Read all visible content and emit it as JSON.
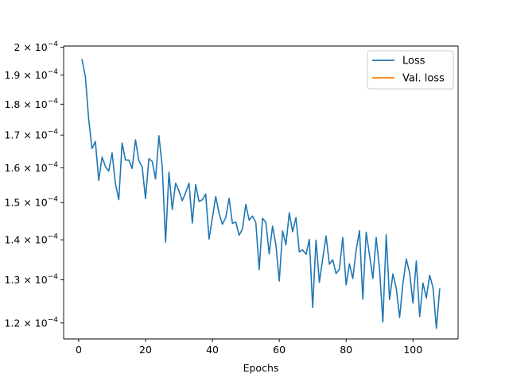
{
  "chart_data": {
    "type": "line",
    "title": "",
    "xlabel": "Epochs",
    "ylabel": "",
    "yscale": "log",
    "xlim": [
      -4.5,
      113.5
    ],
    "ylim": [
      0.0001165,
      0.0002005
    ],
    "grid": false,
    "legend_position": "top-right",
    "x_ticks": [
      0,
      20,
      40,
      60,
      80,
      100
    ],
    "x_tick_labels": [
      "0",
      "20",
      "40",
      "60",
      "80",
      "100"
    ],
    "y_ticks": [
      0.00012,
      0.00013,
      0.00014,
      0.00015,
      0.00016,
      0.00017,
      0.00018,
      0.00019,
      0.0002
    ],
    "y_tick_labels": [
      {
        "mantissa": "1.2",
        "base": "10",
        "exp": "−4"
      },
      {
        "mantissa": "1.3",
        "base": "10",
        "exp": "−4"
      },
      {
        "mantissa": "1.4",
        "base": "10",
        "exp": "−4"
      },
      {
        "mantissa": "1.5",
        "base": "10",
        "exp": "−4"
      },
      {
        "mantissa": "1.6",
        "base": "10",
        "exp": "−4"
      },
      {
        "mantissa": "1.7",
        "base": "10",
        "exp": "−4"
      },
      {
        "mantissa": "1.8",
        "base": "10",
        "exp": "−4"
      },
      {
        "mantissa": "1.9",
        "base": "10",
        "exp": "−4"
      },
      {
        "mantissa": "2",
        "base": "10",
        "exp": "−4"
      }
    ],
    "series": [
      {
        "name": "Loss",
        "color": "#1f77b4",
        "x": [
          1,
          2,
          3,
          4,
          5,
          6,
          7,
          8,
          9,
          10,
          11,
          12,
          13,
          14,
          15,
          16,
          17,
          18,
          19,
          20,
          21,
          22,
          23,
          24,
          25,
          26,
          27,
          28,
          29,
          30,
          31,
          32,
          33,
          34,
          35,
          36,
          37,
          38,
          39,
          40,
          41,
          42,
          43,
          44,
          45,
          46,
          47,
          48,
          49,
          50,
          51,
          52,
          53,
          54,
          55,
          56,
          57,
          58,
          59,
          60,
          61,
          62,
          63,
          64,
          65,
          66,
          67,
          68,
          69,
          70,
          71,
          72,
          73,
          74,
          75,
          76,
          77,
          78,
          79,
          80,
          81,
          82,
          83,
          84,
          85,
          86,
          87,
          88,
          89,
          90,
          91,
          92,
          93,
          94,
          95,
          96,
          97,
          98,
          99,
          100,
          101,
          102,
          103,
          104,
          105,
          106,
          107,
          108
        ],
        "y": [
          0.0001955,
          0.0001895,
          0.000175,
          0.0001658,
          0.000168,
          0.0001563,
          0.0001632,
          0.0001604,
          0.000159,
          0.0001645,
          0.0001553,
          0.0001508,
          0.0001675,
          0.0001623,
          0.0001623,
          0.0001598,
          0.0001685,
          0.0001622,
          0.0001602,
          0.0001511,
          0.0001627,
          0.0001619,
          0.0001567,
          0.0001698,
          0.0001604,
          0.0001394,
          0.0001587,
          0.0001481,
          0.0001555,
          0.0001533,
          0.0001505,
          0.0001528,
          0.0001555,
          0.0001444,
          0.0001551,
          0.0001503,
          0.0001508,
          0.0001524,
          0.0001402,
          0.0001458,
          0.0001517,
          0.000147,
          0.0001441,
          0.0001459,
          0.0001512,
          0.0001443,
          0.0001447,
          0.0001412,
          0.0001428,
          0.0001495,
          0.0001452,
          0.0001463,
          0.0001445,
          0.0001325,
          0.0001457,
          0.0001446,
          0.0001364,
          0.0001436,
          0.0001387,
          0.0001297,
          0.0001423,
          0.0001387,
          0.0001472,
          0.0001421,
          0.0001459,
          0.0001369,
          0.0001374,
          0.0001363,
          0.0001401,
          0.0001235,
          0.0001399,
          0.0001294,
          0.0001352,
          0.000141,
          0.0001338,
          0.0001349,
          0.0001315,
          0.0001326,
          0.0001406,
          0.0001288,
          0.0001339,
          0.0001303,
          0.0001373,
          0.0001424,
          0.0001254,
          0.000142,
          0.0001361,
          0.0001303,
          0.0001406,
          0.0001326,
          0.0001202,
          0.0001413,
          0.0001253,
          0.0001314,
          0.000128,
          0.0001212,
          0.0001291,
          0.0001351,
          0.0001317,
          0.0001245,
          0.0001346,
          0.0001214,
          0.0001292,
          0.0001257,
          0.0001311,
          0.0001281,
          0.0001188,
          0.0001278
        ]
      },
      {
        "name": "Val. loss",
        "color": "#ff7f0e",
        "x": [],
        "y": []
      }
    ]
  }
}
